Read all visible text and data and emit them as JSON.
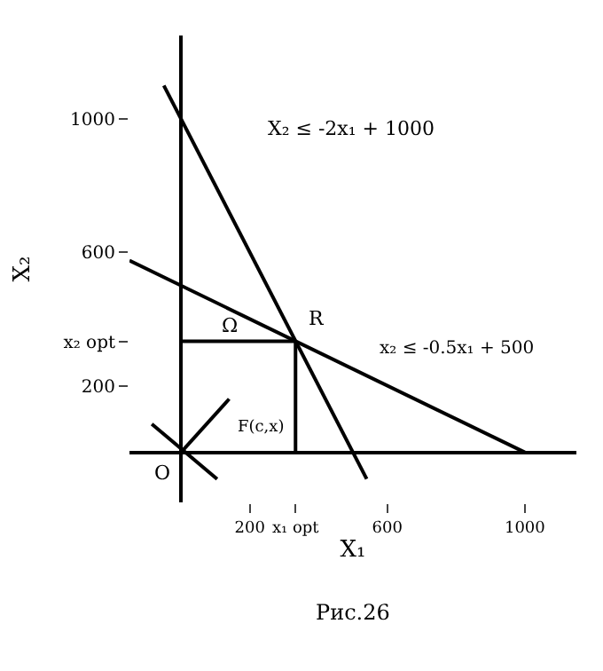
{
  "chart_data": {
    "type": "line",
    "xlabel": "X₁",
    "ylabel": "X₂",
    "series": [
      {
        "color": "#000000",
        "x": [
          -50,
          540
        ],
        "values": [
          1100,
          -80
        ]
      },
      {
        "color": "#000000",
        "x": [
          -150,
          1000
        ],
        "values": [
          575,
          0
        ]
      },
      {
        "color": "#000000",
        "x": [
          -85,
          105
        ],
        "values": [
          85,
          -80
        ]
      },
      {
        "color": "#000000",
        "x": [
          0,
          333
        ],
        "values": [
          333,
          333
        ]
      },
      {
        "color": "#000000",
        "x": [
          333,
          333
        ],
        "values": [
          0,
          333
        ]
      },
      {
        "color": "#000000",
        "x": [
          0,
          140
        ],
        "values": [
          0,
          160
        ]
      }
    ],
    "xlim": [
      -150,
      1150
    ],
    "ylim": [
      -150,
      1250
    ],
    "xticks": [
      200,
      {
        "value": 333,
        "label": "x₁ opt"
      },
      600,
      1000
    ],
    "yticks": [
      200,
      {
        "value": 333,
        "label": "x₂ opt"
      },
      600,
      1000
    ],
    "marker": "none",
    "line_style": "solid",
    "annotations": [
      "X₂ ≤ -2x₁ + 1000",
      "x₂ ≤ -0.5x₁ + 500",
      {
        "text": "R",
        "x": 333,
        "y": 333
      },
      "Ω",
      "F(c,x)",
      {
        "text": "O",
        "x": 0,
        "y": 0
      },
      "Рис.26"
    ]
  }
}
